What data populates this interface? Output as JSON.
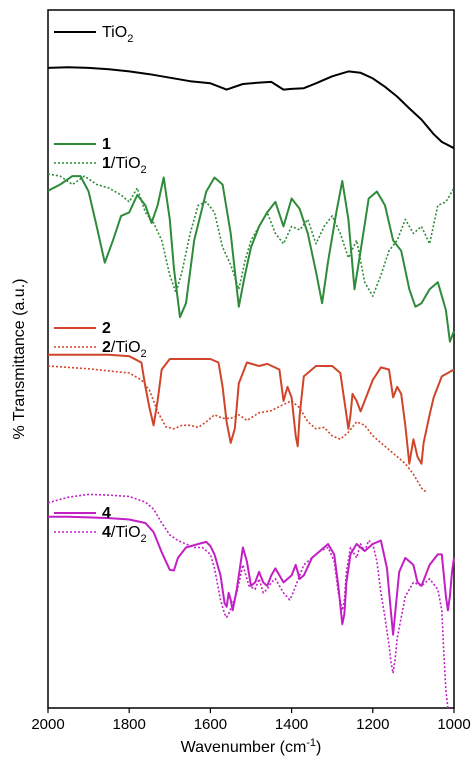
{
  "chart_data": {
    "type": "line",
    "title": "",
    "xlabel": "Wavenumber (cm",
    "xlabel_sup": "-1",
    "xlabel_tail": ")",
    "ylabel": "% Transmittance (a.u.)",
    "xlim": [
      2000,
      1000
    ],
    "ylim": [
      0,
      100
    ],
    "x_reversed": true,
    "y_ticks_shown": false,
    "grid": false,
    "x_ticks": [
      "2000",
      "1800",
      "1600",
      "1400",
      "1200",
      "1000"
    ],
    "x_tick_values": [
      2000,
      1800,
      1600,
      1400,
      1200,
      1000
    ],
    "legend_placement": "above each trace, left",
    "series": [
      {
        "name": "TiO2",
        "legend_bold": "",
        "legend_tail": "TiO",
        "legend_sub": "2",
        "color": "#000000",
        "dash": "solid",
        "x": [
          2000,
          1950,
          1900,
          1850,
          1800,
          1750,
          1700,
          1650,
          1600,
          1560,
          1520,
          1480,
          1450,
          1420,
          1400,
          1370,
          1340,
          1300,
          1260,
          1230,
          1200,
          1170,
          1140,
          1110,
          1080,
          1050,
          1030,
          1000
        ],
        "y": [
          91.7,
          91.8,
          91.7,
          91.5,
          91.2,
          90.8,
          90.3,
          89.8,
          89.5,
          88.6,
          89.4,
          89.6,
          89.7,
          88.6,
          88.7,
          88.8,
          89.5,
          90.5,
          91.2,
          91.0,
          90.2,
          89.0,
          87.6,
          85.9,
          84.3,
          82.2,
          81.1,
          80.2
        ]
      },
      {
        "name": "1",
        "legend_bold": "1",
        "legend_tail": "",
        "legend_sub": "",
        "color": "#2e8b3a",
        "dash": "solid",
        "x": [
          2000,
          1970,
          1940,
          1920,
          1900,
          1880,
          1860,
          1840,
          1820,
          1800,
          1780,
          1760,
          1745,
          1730,
          1715,
          1700,
          1690,
          1675,
          1660,
          1640,
          1610,
          1590,
          1570,
          1550,
          1530,
          1515,
          1500,
          1480,
          1460,
          1440,
          1420,
          1400,
          1380,
          1360,
          1340,
          1325,
          1310,
          1290,
          1275,
          1260,
          1245,
          1230,
          1210,
          1190,
          1170,
          1150,
          1130,
          1110,
          1095,
          1080,
          1060,
          1040,
          1020,
          1010,
          1000
        ],
        "y": [
          74.1,
          75.0,
          76.2,
          76.2,
          74.0,
          69.0,
          63.8,
          67.0,
          70.5,
          71.0,
          73.5,
          72.0,
          69.5,
          72.0,
          76.0,
          70.0,
          63.0,
          56.0,
          58.0,
          67.0,
          74.0,
          76.0,
          75.0,
          68.0,
          57.5,
          62.0,
          66.0,
          69.0,
          71.0,
          72.5,
          69.0,
          73.0,
          71.5,
          68.0,
          62.5,
          58.0,
          64.0,
          71.0,
          75.5,
          70.0,
          60.0,
          65.5,
          73.0,
          74.0,
          72.0,
          67.0,
          65.5,
          60.0,
          57.5,
          58.0,
          60.0,
          61.0,
          57.0,
          52.5,
          54.0
        ]
      },
      {
        "name": "1/TiO2",
        "legend_bold": "1",
        "legend_tail": "/TiO",
        "legend_sub": "2",
        "color": "#2e8b3a",
        "dash": "dotted",
        "x": [
          2000,
          1970,
          1940,
          1910,
          1880,
          1850,
          1820,
          1800,
          1780,
          1760,
          1740,
          1720,
          1700,
          1685,
          1670,
          1650,
          1630,
          1610,
          1590,
          1570,
          1550,
          1530,
          1515,
          1500,
          1480,
          1460,
          1440,
          1420,
          1400,
          1380,
          1360,
          1340,
          1320,
          1300,
          1280,
          1260,
          1240,
          1220,
          1200,
          1180,
          1160,
          1140,
          1120,
          1100,
          1080,
          1060,
          1040,
          1020,
          1000
        ],
        "y": [
          76.5,
          76.2,
          75.0,
          76.2,
          75.0,
          74.5,
          73.5,
          72.5,
          74.5,
          71.0,
          69.5,
          67.0,
          62.0,
          59.5,
          62.5,
          68.0,
          72.0,
          72.5,
          71.0,
          66.0,
          63.5,
          60.0,
          64.0,
          67.0,
          69.0,
          71.0,
          68.0,
          66.5,
          69.0,
          68.5,
          70.0,
          66.5,
          69.0,
          70.5,
          68.0,
          64.5,
          67.0,
          61.0,
          59.0,
          62.0,
          65.5,
          67.0,
          70.0,
          68.0,
          69.0,
          66.5,
          72.0,
          72.5,
          74.5
        ]
      },
      {
        "name": "2",
        "legend_bold": "2",
        "legend_tail": "",
        "legend_sub": "",
        "color": "#d0452a",
        "dash": "solid",
        "x": [
          2000,
          1950,
          1900,
          1850,
          1800,
          1770,
          1760,
          1750,
          1740,
          1730,
          1720,
          1700,
          1650,
          1600,
          1580,
          1570,
          1560,
          1550,
          1540,
          1530,
          1510,
          1480,
          1460,
          1430,
          1420,
          1410,
          1400,
          1390,
          1385,
          1380,
          1370,
          1340,
          1300,
          1280,
          1270,
          1260,
          1255,
          1250,
          1240,
          1230,
          1220,
          1200,
          1180,
          1160,
          1150,
          1140,
          1130,
          1120,
          1110,
          1100,
          1090,
          1080,
          1075,
          1060,
          1050,
          1030,
          1000
        ],
        "y": [
          50.6,
          50.6,
          50.6,
          50.6,
          50.4,
          49.5,
          46.0,
          43.0,
          40.5,
          44.0,
          48.5,
          50.0,
          50.0,
          50.0,
          49.5,
          46.0,
          41.0,
          38.0,
          40.0,
          46.5,
          49.5,
          49.0,
          49.3,
          48.5,
          44.0,
          46.0,
          44.5,
          39.0,
          37.5,
          42.0,
          47.5,
          49.0,
          49.0,
          48.0,
          44.0,
          40.0,
          42.0,
          45.0,
          44.0,
          42.5,
          44.0,
          47.0,
          48.8,
          48.5,
          44.5,
          46.0,
          45.0,
          40.5,
          35.0,
          38.5,
          36.0,
          35.0,
          38.0,
          42.0,
          44.5,
          47.5,
          48.5
        ]
      },
      {
        "name": "2/TiO2",
        "legend_bold": "2",
        "legend_tail": "/TiO",
        "legend_sub": "2",
        "color": "#d0452a",
        "dash": "dotted",
        "x": [
          2000,
          1950,
          1900,
          1850,
          1800,
          1770,
          1750,
          1730,
          1710,
          1690,
          1670,
          1650,
          1630,
          1610,
          1590,
          1570,
          1550,
          1530,
          1510,
          1480,
          1450,
          1420,
          1400,
          1380,
          1360,
          1340,
          1320,
          1300,
          1280,
          1260,
          1240,
          1220,
          1200,
          1180,
          1160,
          1140,
          1120,
          1100,
          1090,
          1080,
          1070
        ],
        "y": [
          49.0,
          48.8,
          48.6,
          48.3,
          48.0,
          47.0,
          45.5,
          42.5,
          40.3,
          40.0,
          40.5,
          40.5,
          40.2,
          41.0,
          42.0,
          41.5,
          41.5,
          42.0,
          41.2,
          42.3,
          42.6,
          43.5,
          44.0,
          43.0,
          41.0,
          40.0,
          40.2,
          39.0,
          38.5,
          39.5,
          41.0,
          40.5,
          39.0,
          38.0,
          37.0,
          36.0,
          35.0,
          33.5,
          32.5,
          31.5,
          31.0
        ]
      },
      {
        "name": "4",
        "legend_bold": "4",
        "legend_tail": "",
        "legend_sub": "",
        "color": "#c21fc5",
        "dash": "solid",
        "x": [
          2000,
          1950,
          1900,
          1850,
          1800,
          1760,
          1740,
          1720,
          1700,
          1690,
          1680,
          1660,
          1630,
          1610,
          1600,
          1590,
          1575,
          1565,
          1560,
          1555,
          1550,
          1545,
          1535,
          1520,
          1510,
          1500,
          1490,
          1480,
          1470,
          1460,
          1450,
          1440,
          1420,
          1400,
          1390,
          1380,
          1370,
          1350,
          1330,
          1310,
          1295,
          1285,
          1275,
          1270,
          1265,
          1255,
          1240,
          1220,
          1200,
          1180,
          1165,
          1155,
          1150,
          1145,
          1135,
          1120,
          1100,
          1090,
          1080,
          1060,
          1040,
          1030,
          1020,
          1015,
          1010,
          1005,
          1000
        ],
        "y": [
          27.4,
          27.4,
          27.3,
          27.2,
          27.0,
          26.5,
          25.2,
          22.3,
          19.8,
          19.7,
          21.5,
          23.0,
          23.5,
          23.8,
          23.2,
          22.0,
          19.0,
          15.0,
          14.5,
          16.5,
          15.5,
          14.0,
          17.0,
          23.0,
          21.0,
          17.5,
          18.0,
          19.5,
          18.0,
          17.5,
          19.0,
          20.0,
          18.0,
          19.0,
          20.5,
          18.5,
          19.0,
          21.5,
          22.5,
          23.5,
          22.0,
          17.5,
          12.0,
          13.5,
          18.0,
          22.0,
          23.5,
          22.5,
          23.5,
          24.0,
          20.0,
          13.5,
          10.5,
          13.5,
          19.5,
          21.5,
          20.5,
          18.0,
          17.5,
          20.5,
          22.0,
          22.0,
          16.0,
          14.0,
          16.0,
          19.5,
          21.5
        ]
      },
      {
        "name": "4/TiO2",
        "legend_bold": "4",
        "legend_tail": "/TiO",
        "legend_sub": "2",
        "color": "#c21fc5",
        "dash": "dotted",
        "x": [
          2000,
          1950,
          1900,
          1850,
          1800,
          1760,
          1740,
          1720,
          1700,
          1680,
          1660,
          1640,
          1620,
          1600,
          1590,
          1575,
          1565,
          1560,
          1555,
          1545,
          1535,
          1520,
          1505,
          1490,
          1480,
          1470,
          1460,
          1450,
          1440,
          1420,
          1405,
          1400,
          1390,
          1380,
          1370,
          1350,
          1330,
          1310,
          1295,
          1285,
          1275,
          1270,
          1265,
          1255,
          1240,
          1230,
          1220,
          1210,
          1200,
          1190,
          1180,
          1170,
          1160,
          1155,
          1150,
          1145,
          1140,
          1120,
          1100,
          1080,
          1060,
          1040,
          1030,
          1025,
          1020,
          1015
        ],
        "y": [
          29.4,
          30.2,
          30.6,
          30.5,
          30.3,
          29.5,
          28.5,
          26.5,
          24.8,
          24.0,
          23.5,
          23.0,
          23.0,
          22.0,
          20.0,
          15.5,
          13.5,
          13.0,
          13.5,
          15.0,
          16.5,
          20.5,
          17.5,
          17.0,
          18.5,
          16.5,
          17.0,
          18.0,
          18.5,
          16.5,
          15.5,
          16.0,
          17.5,
          19.0,
          20.5,
          21.5,
          22.5,
          23.0,
          21.0,
          16.5,
          14.0,
          15.5,
          19.5,
          23.0,
          21.5,
          23.5,
          22.5,
          24.0,
          23.5,
          21.0,
          16.5,
          13.0,
          9.0,
          6.5,
          5.0,
          7.0,
          10.0,
          16.0,
          18.0,
          17.5,
          18.5,
          17.0,
          14.0,
          8.0,
          2.5,
          0.0
        ]
      }
    ]
  }
}
